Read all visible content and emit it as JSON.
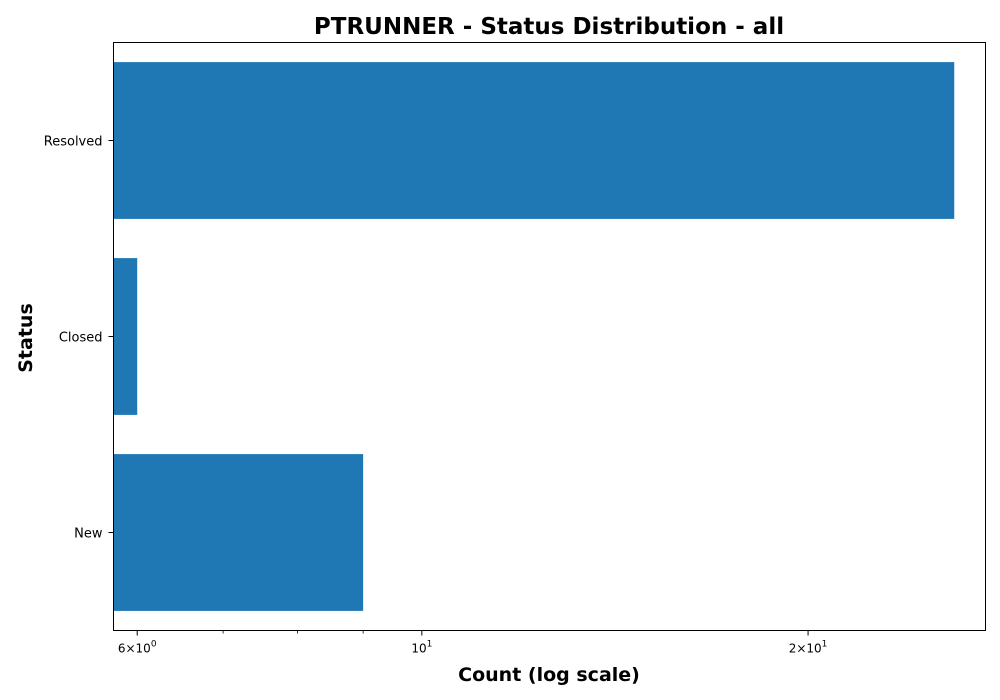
{
  "chart_data": {
    "type": "bar",
    "orientation": "horizontal",
    "title": "PTRUNNER - Status Distribution - all",
    "xlabel": "Count (log scale)",
    "ylabel": "Status",
    "x_scale": "log",
    "xlim": [
      5.75,
      27.5
    ],
    "categories": [
      "Resolved",
      "Closed",
      "New"
    ],
    "values": [
      26,
      6,
      9
    ],
    "x_major_ticks": [
      {
        "value": 6,
        "base": "6",
        "mult": "×10",
        "exp": "0"
      },
      {
        "value": 10,
        "base": "",
        "mult": "10",
        "exp": "1"
      },
      {
        "value": 20,
        "base": "2",
        "mult": "×10",
        "exp": "1"
      }
    ],
    "x_minor_ticks": [
      7,
      8,
      9
    ],
    "bar_color": "#1f77b4",
    "grid": false,
    "legend": "none"
  }
}
